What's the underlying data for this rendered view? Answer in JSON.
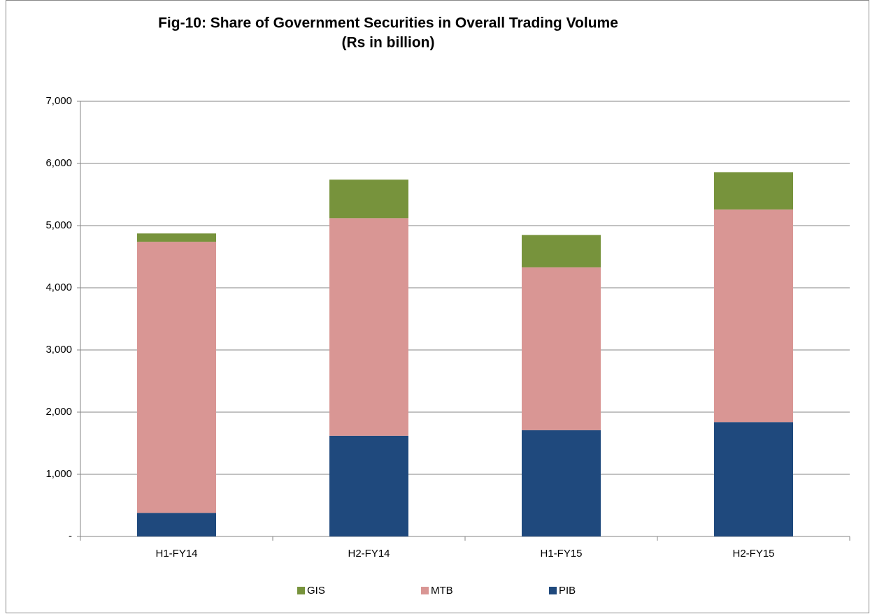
{
  "chart_data": {
    "type": "stacked_bar",
    "title": "Fig-10: Share of Government Securities in  Overall Trading Volume",
    "subtitle": "(Rs in billion)",
    "categories": [
      "H1-FY14",
      "H2-FY14",
      "H1-FY15",
      "H2-FY15"
    ],
    "series": [
      {
        "name": "GIS",
        "color": "#77933c",
        "values": [
          134,
          620,
          520,
          600
        ]
      },
      {
        "name": "MTB",
        "color": "#d99694",
        "values": [
          4360,
          3500,
          2620,
          3420
        ]
      },
      {
        "name": "PIB",
        "color": "#1f497d",
        "values": [
          380,
          1620,
          1710,
          1840
        ]
      }
    ],
    "ylim": [
      0,
      7000
    ],
    "yticks": [
      {
        "value": 0,
        "label": "-"
      },
      {
        "value": 1000,
        "label": "1,000"
      },
      {
        "value": 2000,
        "label": "2,000"
      },
      {
        "value": 3000,
        "label": "3,000"
      },
      {
        "value": 4000,
        "label": "4,000"
      },
      {
        "value": 5000,
        "label": "5,000"
      },
      {
        "value": 6000,
        "label": "6,000"
      },
      {
        "value": 7000,
        "label": "7,000"
      }
    ],
    "grid": true,
    "legend": "bottom"
  }
}
